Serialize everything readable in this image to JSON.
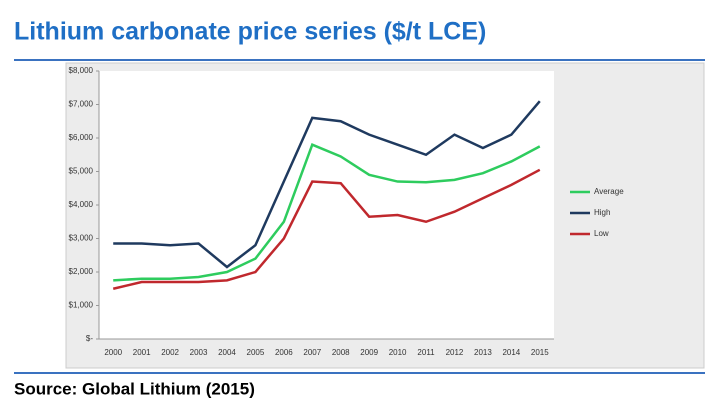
{
  "chart_data": {
    "type": "line",
    "title": "Lithium carbonate price series ($/t LCE)",
    "source": "Source: Global Lithium (2015)",
    "categories": [
      "2000",
      "2001",
      "2002",
      "2003",
      "2004",
      "2005",
      "2006",
      "2007",
      "2008",
      "2009",
      "2010",
      "2011",
      "2012",
      "2013",
      "2014",
      "2015"
    ],
    "series": [
      {
        "name": "Average",
        "color": "#2ecc5e",
        "values": [
          1750,
          1800,
          1800,
          1850,
          2000,
          2400,
          3500,
          5800,
          5450,
          4900,
          4700,
          4680,
          4750,
          4950,
          5300,
          5750
        ]
      },
      {
        "name": "High",
        "color": "#1f3a5f",
        "values": [
          2850,
          2850,
          2800,
          2850,
          2150,
          2800,
          4700,
          6600,
          6500,
          6100,
          5800,
          5500,
          6100,
          5700,
          6100,
          7100
        ]
      },
      {
        "name": "Low",
        "color": "#c0282d",
        "values": [
          1500,
          1700,
          1700,
          1700,
          1750,
          2000,
          3000,
          4700,
          4650,
          3650,
          3700,
          3500,
          3800,
          4200,
          4600,
          5050
        ]
      }
    ],
    "ylim": [
      0,
      8000
    ],
    "yticks": [
      {
        "value": 0,
        "label": "$-"
      },
      {
        "value": 1000,
        "label": "$1,000"
      },
      {
        "value": 2000,
        "label": "$2,000"
      },
      {
        "value": 3000,
        "label": "$3,000"
      },
      {
        "value": 4000,
        "label": "$4,000"
      },
      {
        "value": 5000,
        "label": "$5,000"
      },
      {
        "value": 6000,
        "label": "$6,000"
      },
      {
        "value": 7000,
        "label": "$7,000"
      },
      {
        "value": 8000,
        "label": "$8,000"
      }
    ],
    "grid": false,
    "legend": "right"
  }
}
